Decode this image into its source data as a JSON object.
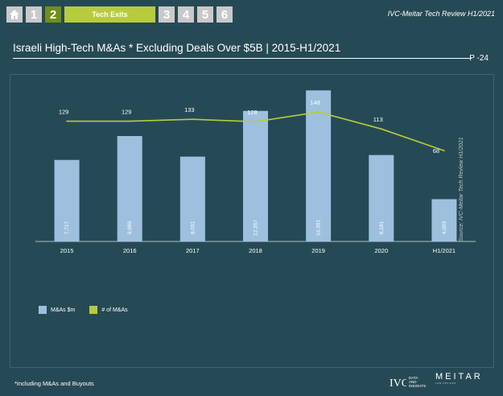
{
  "nav": {
    "home_icon": "home-icon",
    "items": [
      "1",
      "2",
      "3",
      "4",
      "5",
      "6"
    ],
    "active_label": "Tech Exits"
  },
  "header": {
    "source": "IVC-Meitar Tech Review H1/2021"
  },
  "title": "Israeli High-Tech M&As * Excluding Deals Over $5B | 2015-H1/2021",
  "page_number": "P -24",
  "colors": {
    "background": "#264a55",
    "bar": "#9ec0de",
    "line": "#b6cc3c",
    "active_nav": "#6f8f18"
  },
  "chart_data": {
    "type": "bar",
    "title": "Israeli High-Tech M&As * Excluding Deals Over $5B | 2015-H1/2021",
    "categories": [
      "2015",
      "2016",
      "2017",
      "2018",
      "2019",
      "2020",
      "H1/2021"
    ],
    "series": [
      {
        "name": "M&As $m",
        "type": "bar",
        "values": [
          7717,
          9980,
          8031,
          12357,
          14301,
          8181,
          4003
        ],
        "labels": [
          "7,717",
          "9,980",
          "8,031",
          "12,357",
          "14,301",
          "8,181",
          "4,003"
        ]
      },
      {
        "name": "# of M&As",
        "type": "line",
        "values": [
          129,
          129,
          133,
          128,
          148,
          113,
          68
        ],
        "labels": [
          "129",
          "129",
          "133",
          "128",
          "148",
          "113",
          "68"
        ]
      }
    ],
    "bar_axis_range": [
      0,
      16000
    ],
    "line_axis_range": [
      0,
      150
    ],
    "grid": false,
    "legend_position": "bottom-left"
  },
  "side_source": "Source: IVC-Meitar Tech Review H1/2021",
  "footnote": "*Including M&As and Buyouts",
  "logos": {
    "ivc_mark": "IVC",
    "ivc_text": [
      "DATA",
      "AND",
      "INSIGHTS"
    ],
    "meitar": "MEITAR",
    "meitar_sub": "LAW OFFICES"
  }
}
